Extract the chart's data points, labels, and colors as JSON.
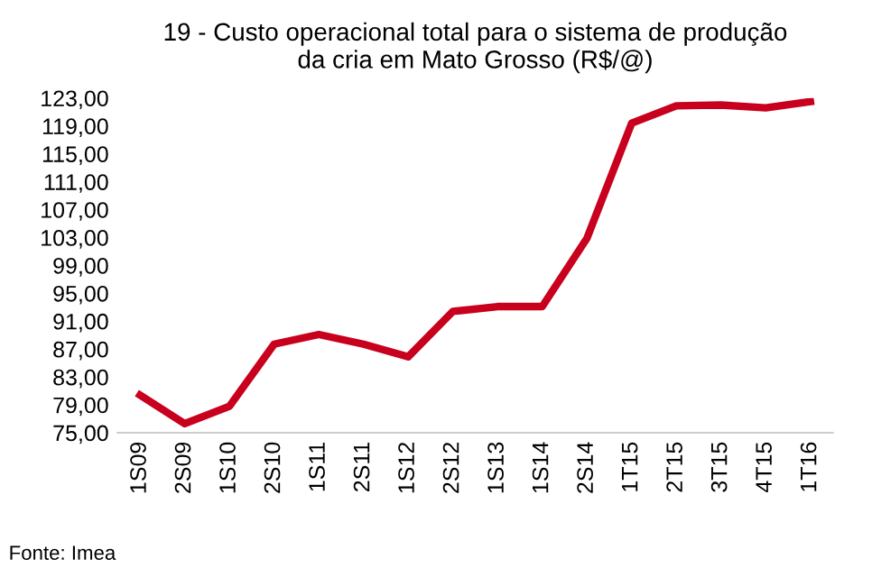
{
  "chart_data": {
    "type": "line",
    "title": "19 - Custo operacional total para o sistema de produção\nda cria em Mato Grosso (R$/@)",
    "categories": [
      "1S09",
      "2S09",
      "1S10",
      "2S10",
      "1S11",
      "2S11",
      "1S12",
      "2S12",
      "1S13",
      "1S14",
      "2S14",
      "1T15",
      "2T15",
      "3T15",
      "4T15",
      "1T16"
    ],
    "series": [
      {
        "color": "#c8001e",
        "values": [
          80.4,
          76.3,
          78.8,
          87.7,
          89.1,
          87.7,
          85.9,
          92.4,
          93.1,
          93.1,
          102.9,
          119.4,
          121.9,
          122.0,
          121.6,
          122.5
        ]
      }
    ],
    "ylim": [
      75,
      123
    ],
    "yticks": [
      {
        "value": 75,
        "label": "75,00"
      },
      {
        "value": 79,
        "label": "79,00"
      },
      {
        "value": 83,
        "label": "83,00"
      },
      {
        "value": 87,
        "label": "87,00"
      },
      {
        "value": 91,
        "label": "91,00"
      },
      {
        "value": 95,
        "label": "95,00"
      },
      {
        "value": 99,
        "label": "99,00"
      },
      {
        "value": 103,
        "label": "103,00"
      },
      {
        "value": 107,
        "label": "107,00"
      },
      {
        "value": 111,
        "label": "111,00"
      },
      {
        "value": 115,
        "label": "115,00"
      },
      {
        "value": 119,
        "label": "119,00"
      },
      {
        "value": 123,
        "label": "123,00"
      }
    ],
    "grid": false,
    "marker": "none",
    "line_style": "solid",
    "annotations": [
      "Fonte: Imea"
    ]
  }
}
